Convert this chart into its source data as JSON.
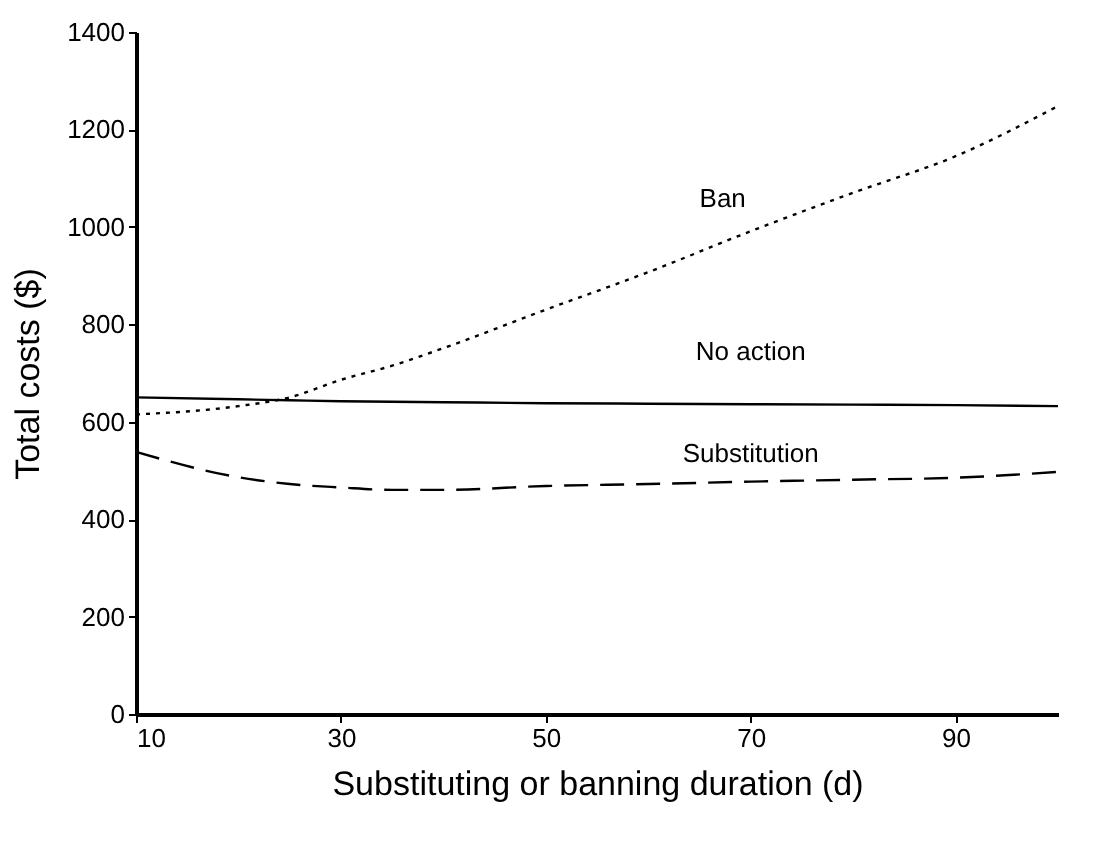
{
  "chart_data": {
    "type": "line",
    "xlabel": "Substituting or banning duration (d)",
    "ylabel": "Total costs ($)",
    "x": [
      10,
      20,
      25,
      30,
      35,
      40,
      50,
      60,
      70,
      80,
      90,
      100
    ],
    "xlim": [
      10,
      100
    ],
    "xticks": [
      10,
      30,
      50,
      70,
      90
    ],
    "ylim": [
      0,
      1400
    ],
    "yticks": [
      0,
      200,
      400,
      600,
      800,
      1000,
      1200,
      1400
    ],
    "grid": false,
    "series": [
      {
        "name": "Ban",
        "color": "#000000",
        "line_style": "dotted",
        "values": [
          615,
          632,
          650,
          686,
          715,
          751,
          830,
          907,
          991,
          1070,
          1145,
          1248
        ]
      },
      {
        "name": "No action",
        "color": "#000000",
        "line_style": "solid",
        "values": [
          650,
          646,
          644,
          642,
          641,
          640,
          638,
          637,
          636,
          635,
          634,
          632
        ]
      },
      {
        "name": "Substitution",
        "color": "#000000",
        "line_style": "dashed",
        "values": [
          538,
          486,
          472,
          465,
          460,
          460,
          468,
          472,
          477,
          481,
          485,
          497
        ]
      }
    ]
  }
}
